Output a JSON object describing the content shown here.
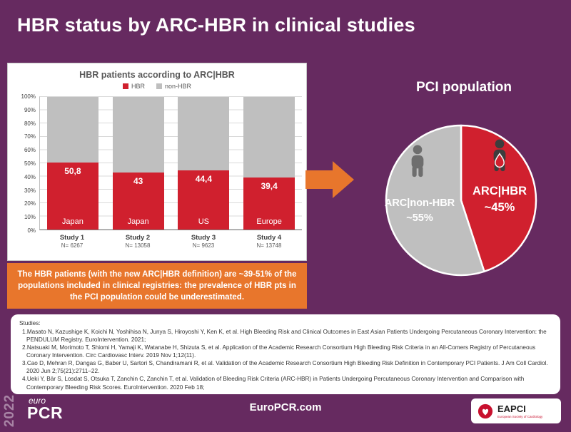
{
  "slide": {
    "title": "HBR status by ARC-HBR in clinical studies",
    "colors": {
      "background": "#662A60",
      "hbr_red": "#D0202E",
      "non_hbr_gray": "#BFBFBF",
      "callout_orange": "#E8762C"
    }
  },
  "chart_data": [
    {
      "type": "bar",
      "stacked": true,
      "title": "HBR patients according to ARC|HBR",
      "categories": [
        "Study 1",
        "Study 2",
        "Study 3",
        "Study 4"
      ],
      "n_labels": [
        "N= 6267",
        "N= 13058",
        "N= 9623",
        "N= 13748"
      ],
      "region_labels": [
        "Japan",
        "Japan",
        "US",
        "Europe"
      ],
      "series": [
        {
          "name": "HBR",
          "color": "#D0202E",
          "values": [
            50.8,
            43,
            44.4,
            39.4
          ],
          "value_labels": [
            "50,8",
            "43",
            "44,4",
            "39,4"
          ]
        },
        {
          "name": "non-HBR",
          "color": "#BFBFBF",
          "values": [
            49.2,
            57,
            55.6,
            60.6
          ]
        }
      ],
      "ylim": [
        0,
        100
      ],
      "y_ticks": [
        "100%",
        "90%",
        "80%",
        "70%",
        "60%",
        "50%",
        "40%",
        "30%",
        "20%",
        "10%",
        "0%"
      ],
      "grid": true,
      "legend_position": "top"
    },
    {
      "type": "pie",
      "title": "PCI population",
      "slices": [
        {
          "name": "ARC|HBR",
          "value": 45,
          "value_label": "~45%",
          "color": "#D0202E"
        },
        {
          "name": "ARC|non-HBR",
          "value": 55,
          "value_label": "~55%",
          "color": "#BFBFBF"
        }
      ],
      "legend_position": "none"
    }
  ],
  "callout": {
    "text": "The HBR patients (with the new ARC|HBR definition) are ~39-51% of the populations included in clinical registries: the prevalence of HBR pts in the PCI population could be underestimated."
  },
  "references": {
    "heading": "Studies:",
    "items": [
      "1.Masato N, Kazushige K, Koichi N, Yoshihisa N, Junya S, Hiroyoshi Y, Ken K, et al. High Bleeding Risk and Clinical Outcomes in East Asian Patients Undergoing Percutaneous Coronary Intervention: the PENDULUM Registry. EuroIntervention. 2021;",
      "2.Natsuaki M, Morimoto T, Shiomi H, Yamaji K, Watanabe H, Shizuta S, et al. Application of the Academic Research Consortium High Bleeding Risk Criteria in an All-Comers Registry of Percutaneous Coronary Intervention. Circ Cardiovasc Interv. 2019 Nov 1;12(11).",
      "3.Cao D, Mehran R, Dangas G, Baber U, Sartori S, Chandiramani R, et al. Validation of the Academic Research Consortium High Bleeding Risk Definition in Contemporary PCI Patients. J Am Coll Cardiol. 2020 Jun 2;75(21):2711–22.",
      "4.Ueki Y, Bär S, Losdat S, Otsuka T, Zanchin C, Zanchin T, et al. Validation of Bleeding Risk Criteria (ARC-HBR) in Patients Undergoing Percutaneous Coronary Intervention and Comparison with Contemporary Bleeding Risk Scores. EuroIntervention. 2020 Feb 18;"
    ]
  },
  "footer": {
    "year": "2022",
    "logo_top": "euro",
    "logo_bottom": "PCR",
    "website": "EuroPCR.com",
    "eapci_label": "EAPCI",
    "eapci_subtitle": "European Society of Cardiology"
  }
}
